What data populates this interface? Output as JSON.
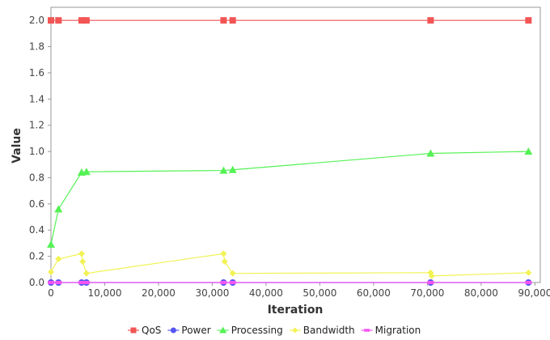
{
  "chart_data": {
    "type": "line",
    "title": "",
    "xlabel": "Iteration",
    "ylabel": "Value",
    "xlim": [
      0,
      91000
    ],
    "ylim": [
      0,
      2.1
    ],
    "x_ticks": [
      0,
      10000,
      20000,
      30000,
      40000,
      50000,
      60000,
      70000,
      80000,
      90000
    ],
    "x_tick_labels": [
      "0",
      "10,000",
      "20,000",
      "30,000",
      "40,000",
      "50,000",
      "60,000",
      "70,000",
      "80,000",
      "90,000"
    ],
    "y_ticks": [
      0,
      0.2,
      0.4,
      0.6,
      0.8,
      1.0,
      1.2,
      1.4,
      1.6,
      1.8,
      2.0
    ],
    "y_tick_labels": [
      "0.0",
      "0.2",
      "0.4",
      "0.6",
      "0.8",
      "1.0",
      "1.2",
      "1.4",
      "1.6",
      "1.8",
      "2.0"
    ],
    "grid": false,
    "legend_position": "bottom",
    "series": [
      {
        "name": "QoS",
        "color": "#f25555",
        "marker": "square",
        "points": [
          [
            0,
            2.0
          ],
          [
            1400,
            2.0
          ],
          [
            5700,
            2.0
          ],
          [
            6600,
            2.0
          ],
          [
            32100,
            2.0
          ],
          [
            33800,
            2.0
          ],
          [
            70600,
            2.0
          ],
          [
            88800,
            2.0
          ]
        ]
      },
      {
        "name": "Power",
        "color": "#5555f2",
        "marker": "circle",
        "points": [
          [
            0,
            0.0
          ],
          [
            1400,
            0.0
          ],
          [
            5700,
            0.0
          ],
          [
            6600,
            0.0
          ],
          [
            32100,
            0.0
          ],
          [
            33800,
            0.0
          ],
          [
            70600,
            0.0
          ],
          [
            88800,
            0.0
          ]
        ]
      },
      {
        "name": "Processing",
        "color": "#55f255",
        "marker": "triangle",
        "points": [
          [
            0,
            0.29
          ],
          [
            1400,
            0.56
          ],
          [
            5700,
            0.84
          ],
          [
            6600,
            0.845
          ],
          [
            32100,
            0.855
          ],
          [
            33800,
            0.86
          ],
          [
            70600,
            0.985
          ],
          [
            88800,
            1.0
          ]
        ]
      },
      {
        "name": "Bandwidth",
        "color": "#f2f255",
        "marker": "diamond",
        "points": [
          [
            0,
            0.08
          ],
          [
            1400,
            0.18
          ],
          [
            5700,
            0.22
          ],
          [
            5900,
            0.16
          ],
          [
            6600,
            0.07
          ],
          [
            32100,
            0.22
          ],
          [
            32300,
            0.16
          ],
          [
            33800,
            0.07
          ],
          [
            70600,
            0.075
          ],
          [
            70800,
            0.05
          ],
          [
            88800,
            0.075
          ]
        ]
      },
      {
        "name": "Migration",
        "color": "#f255f2",
        "marker": "rect",
        "points": [
          [
            0,
            0.0
          ],
          [
            1400,
            0.0
          ],
          [
            5700,
            0.0
          ],
          [
            6600,
            0.0
          ],
          [
            32100,
            0.0
          ],
          [
            33800,
            0.0
          ],
          [
            70600,
            0.0
          ],
          [
            88800,
            0.0
          ]
        ]
      }
    ]
  }
}
